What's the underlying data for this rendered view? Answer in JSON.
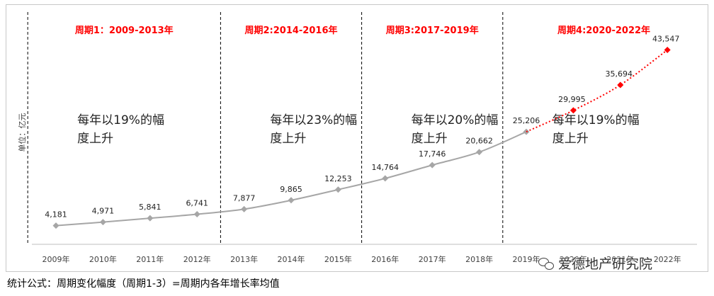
{
  "chart_data": {
    "type": "line",
    "ylabel": "单位：亿元",
    "categories": [
      "2009年",
      "2010年",
      "2011年",
      "2012年",
      "2013年",
      "2014年",
      "2015年",
      "2016年",
      "2017年",
      "2018年",
      "2019年",
      "2020年",
      "2021年",
      "2022年"
    ],
    "series": [
      {
        "values": [
          4181,
          4971,
          5841,
          6741,
          7877,
          9865,
          12253,
          14764,
          17746,
          20662,
          25206,
          null,
          null,
          null
        ],
        "style": "solid",
        "color": "#a6a6a6"
      },
      {
        "values": [
          null,
          null,
          null,
          null,
          null,
          null,
          null,
          null,
          null,
          null,
          25206,
          29995,
          35694,
          43547
        ],
        "style": "dotted",
        "color": "#ff0000"
      }
    ],
    "data_labels": [
      "4,181",
      "4,971",
      "5,841",
      "6,741",
      "7,877",
      "9,865",
      "12,253",
      "14,764",
      "17,746",
      "20,662",
      "25,206",
      "29,995",
      "35,694",
      "43,547"
    ],
    "ylim": [
      0,
      46000
    ],
    "periods": [
      {
        "title": "周期1：2009-2013年",
        "note": "每年以19%的幅度上升"
      },
      {
        "title": "周期2:2014-2016年",
        "note": "每年以23%的幅度上升"
      },
      {
        "title": "周期3:2017-2019年",
        "note": "每年以20%的幅度上升"
      },
      {
        "title": "周期4:2020-2022年",
        "note": "每年以19%的幅度上升"
      }
    ],
    "dividers_after_category": [
      3.5,
      6.5,
      9.5
    ],
    "grid": false
  },
  "footer": {
    "formula": "统计公式：周期变化幅度（周期1-3）=周期内各年增长率均值"
  },
  "watermark": {
    "text": "爱德地产研究院"
  }
}
